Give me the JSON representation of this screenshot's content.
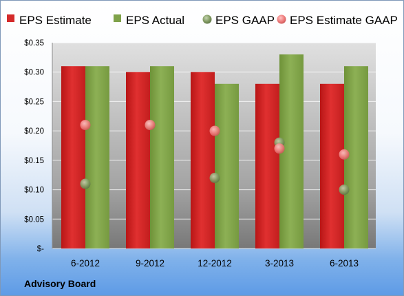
{
  "chart_data": {
    "type": "bar",
    "categories": [
      "6-2012",
      "9-2012",
      "12-2012",
      "3-2013",
      "6-2013"
    ],
    "series": [
      {
        "name": "EPS Estimate",
        "kind": "bar",
        "color": "#d42a2a",
        "values": [
          0.31,
          0.3,
          0.3,
          0.28,
          0.28
        ]
      },
      {
        "name": "EPS Actual",
        "kind": "bar",
        "color": "#7fa24a",
        "values": [
          0.31,
          0.31,
          0.28,
          0.33,
          0.31
        ]
      },
      {
        "name": "EPS GAAP",
        "kind": "scatter",
        "color": "#6f9050",
        "values": [
          0.11,
          0.21,
          0.12,
          0.18,
          0.1
        ]
      },
      {
        "name": "EPS Estimate GAAP",
        "kind": "scatter",
        "color": "#e8787a",
        "values": [
          0.21,
          0.21,
          0.2,
          0.17,
          0.16
        ]
      }
    ],
    "yticks": [
      "$0.35",
      "$0.30",
      "$0.25",
      "$0.20",
      "$0.15",
      "$0.10",
      "$0.05",
      "$-"
    ],
    "ylim": [
      0,
      0.35
    ],
    "grid": true,
    "legend": "top"
  },
  "footer": {
    "source": "Advisory Board"
  }
}
